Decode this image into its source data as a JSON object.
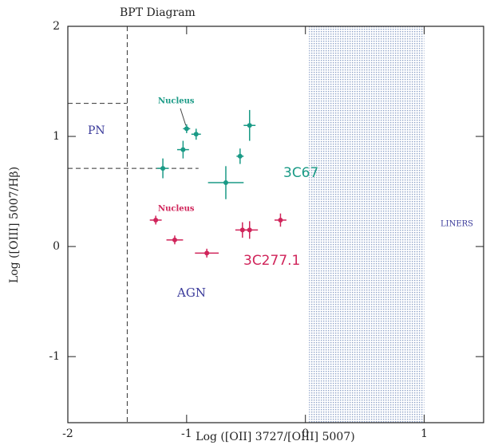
{
  "chart_data": {
    "type": "scatter",
    "title": "BPT Diagram",
    "x_label": "Log ([OII] 3727/[OIII] 5007)",
    "y_label": "Log ([OIII] 5007/Hβ)",
    "xlim": [
      -2,
      1.5
    ],
    "ylim": [
      -1.6,
      2
    ],
    "xticks": [
      -2,
      -1,
      0,
      1
    ],
    "yticks": [
      -1,
      0,
      1,
      2
    ],
    "shaded_region": [
      0.03,
      1
    ],
    "vline": -1.5,
    "hlines": [
      {
        "y": 1.3,
        "xmax": -1.5
      },
      {
        "y": 0.71,
        "xmax": -0.9
      }
    ],
    "series": [
      {
        "name": "3C67",
        "color": "#1a9a86",
        "x": [
          -1.2,
          -1.03,
          -1.0,
          -0.92,
          -0.67,
          -0.55,
          -0.47
        ],
        "y": [
          0.71,
          0.88,
          1.07,
          1.02,
          0.58,
          0.82,
          1.1
        ],
        "xerr": [
          0.05,
          0.05,
          0.03,
          0.04,
          0.15,
          0.03,
          0.05
        ],
        "yerr": [
          0.09,
          0.08,
          0.04,
          0.05,
          0.15,
          0.07,
          0.14
        ]
      },
      {
        "name": "3C277.1",
        "color": "#d0245a",
        "x": [
          -1.26,
          -1.1,
          -0.83,
          -0.53,
          -0.47,
          -0.21
        ],
        "y": [
          0.24,
          0.06,
          -0.06,
          0.15,
          0.15,
          0.24
        ],
        "xerr": [
          0.05,
          0.07,
          0.1,
          0.06,
          0.07,
          0.05
        ],
        "yerr": [
          0.04,
          0.04,
          0.04,
          0.07,
          0.08,
          0.06
        ]
      }
    ],
    "annotations": [
      {
        "text": "PN"
      },
      {
        "text": "AGN"
      },
      {
        "text": "LINERS"
      },
      {
        "text": "Nucleus"
      },
      {
        "text": "Nucleus"
      }
    ]
  }
}
